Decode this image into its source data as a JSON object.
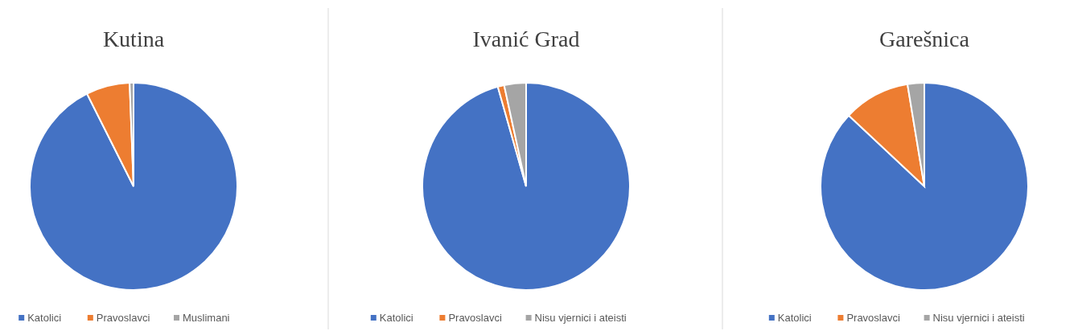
{
  "chart_data": [
    {
      "type": "pie",
      "title": "Kutina",
      "categories": [
        "Katolici",
        "Pravoslavci",
        "Muslimani"
      ],
      "values": [
        92.6,
        6.8,
        0.6
      ],
      "colors": [
        "#4472c4",
        "#ed7d31",
        "#a5a5a5"
      ],
      "legend": "bottom"
    },
    {
      "type": "pie",
      "title": "Ivanić Grad",
      "categories": [
        "Katolici",
        "Pravoslavci",
        "Nisu vjernici i ateisti"
      ],
      "values": [
        95.6,
        1.0,
        3.4
      ],
      "colors": [
        "#4472c4",
        "#ed7d31",
        "#a5a5a5"
      ],
      "legend": "bottom"
    },
    {
      "type": "pie",
      "title": "Garešnica",
      "categories": [
        "Katolici",
        "Pravoslavci",
        "Nisu vjernici i ateisti"
      ],
      "values": [
        87.0,
        10.4,
        2.6
      ],
      "colors": [
        "#4472c4",
        "#ed7d31",
        "#a5a5a5"
      ],
      "legend": "bottom"
    }
  ]
}
